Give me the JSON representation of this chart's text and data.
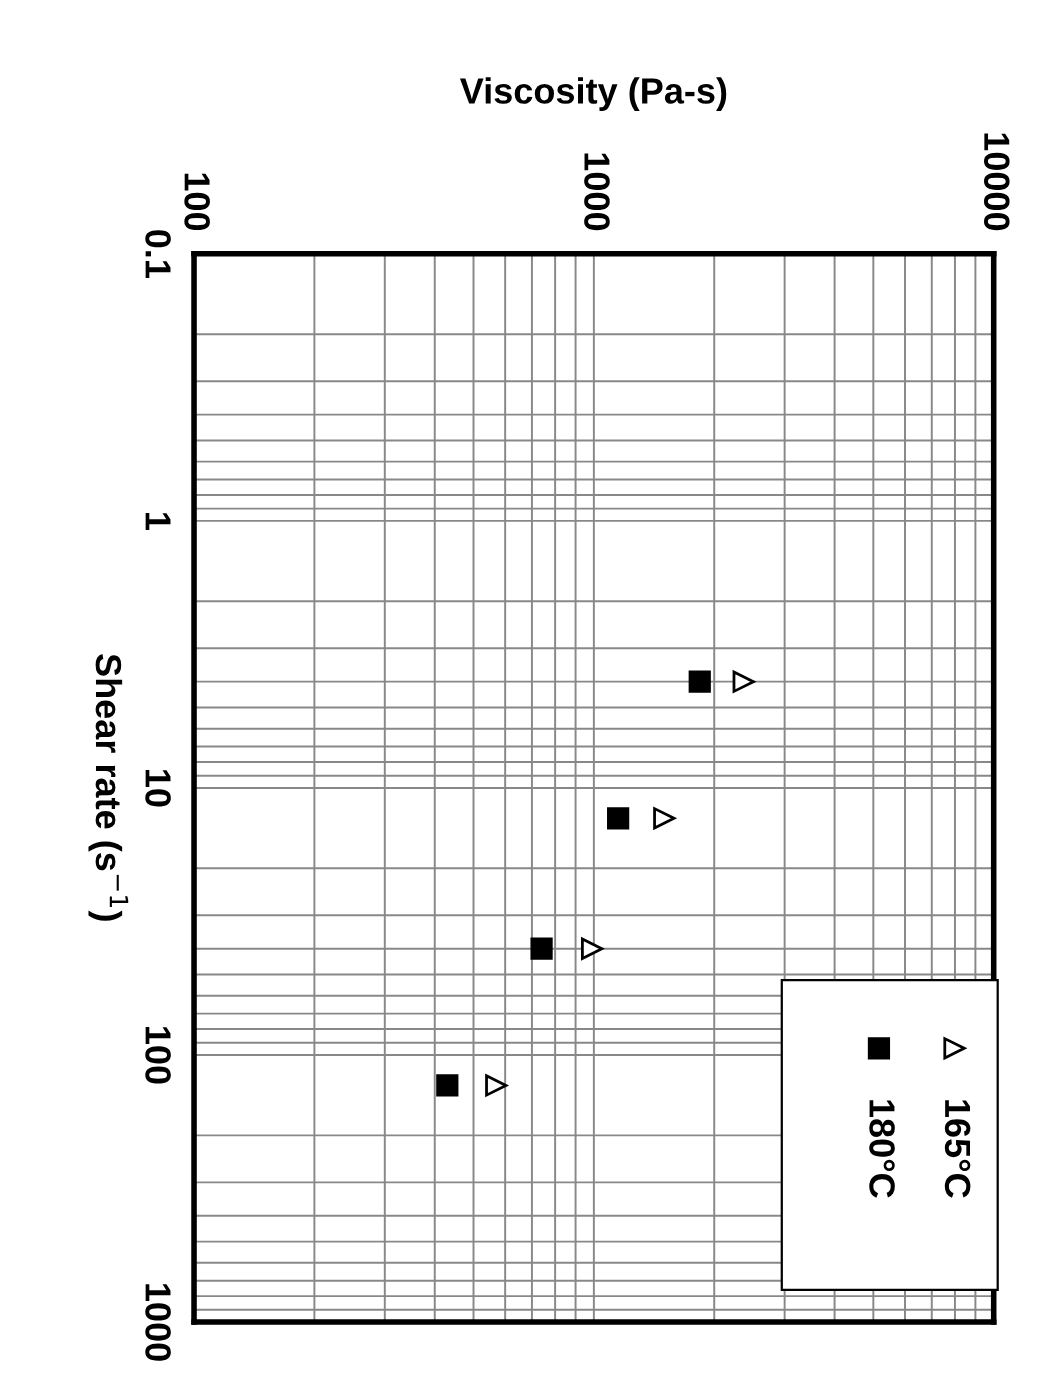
{
  "chart_data": {
    "type": "scatter",
    "xlabel": "Viscosity (Pa-s)",
    "ylabel": "Shear rate (s$^{−1}$)",
    "log": "xy",
    "xlim": [
      100,
      10000
    ],
    "xticks": [
      100,
      1000,
      10000
    ],
    "ylim": [
      1000,
      0.1
    ],
    "yticks": [
      0.1,
      1,
      10,
      100,
      1000
    ],
    "series": [
      {
        "name": "165°C",
        "color": "#000000",
        "marker": "triangle",
        "x": [
          2370,
          1500,
          990,
          570
        ],
        "values": [
          4,
          13,
          40,
          130
        ]
      },
      {
        "name": "180°C",
        "color": "#000000",
        "marker": "square",
        "x": [
          1840,
          1150,
          740,
          430
        ],
        "values": [
          4,
          13,
          40,
          130
        ]
      }
    ],
    "grid": true,
    "legend": "bottom right"
  }
}
